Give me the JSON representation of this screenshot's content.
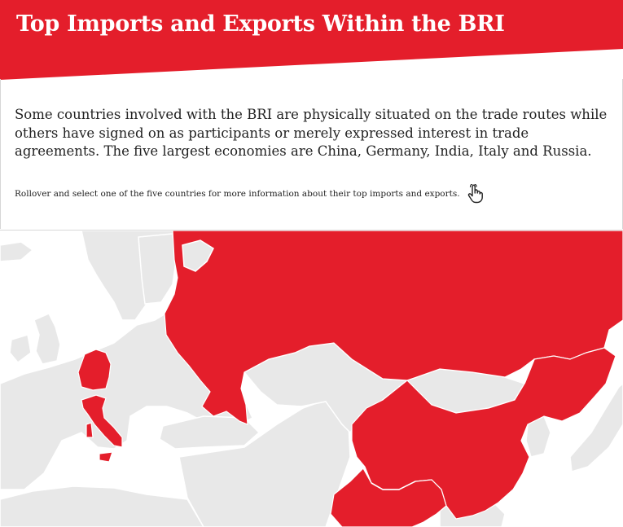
{
  "header": {
    "title": "Top Imports and Exports Within the BRI"
  },
  "intro": {
    "text": "Some countries involved with the BRI are physically situated on the trade routes while others have signed on as participants or merely expressed interest in trade agreements. The five largest economies are China, Germany, India, Italy and Russia."
  },
  "hint": {
    "text": "Rollover and select one of the five countries for more information about their top imports and exports.",
    "icon": "pointer-hand-icon"
  },
  "map": {
    "highlighted_countries": [
      "Russia",
      "China",
      "India",
      "Germany",
      "Italy"
    ],
    "colors": {
      "highlight": "#e41e2b",
      "land": "#e8e8e8",
      "water": "#ffffff",
      "header": "#e41e2b"
    }
  }
}
